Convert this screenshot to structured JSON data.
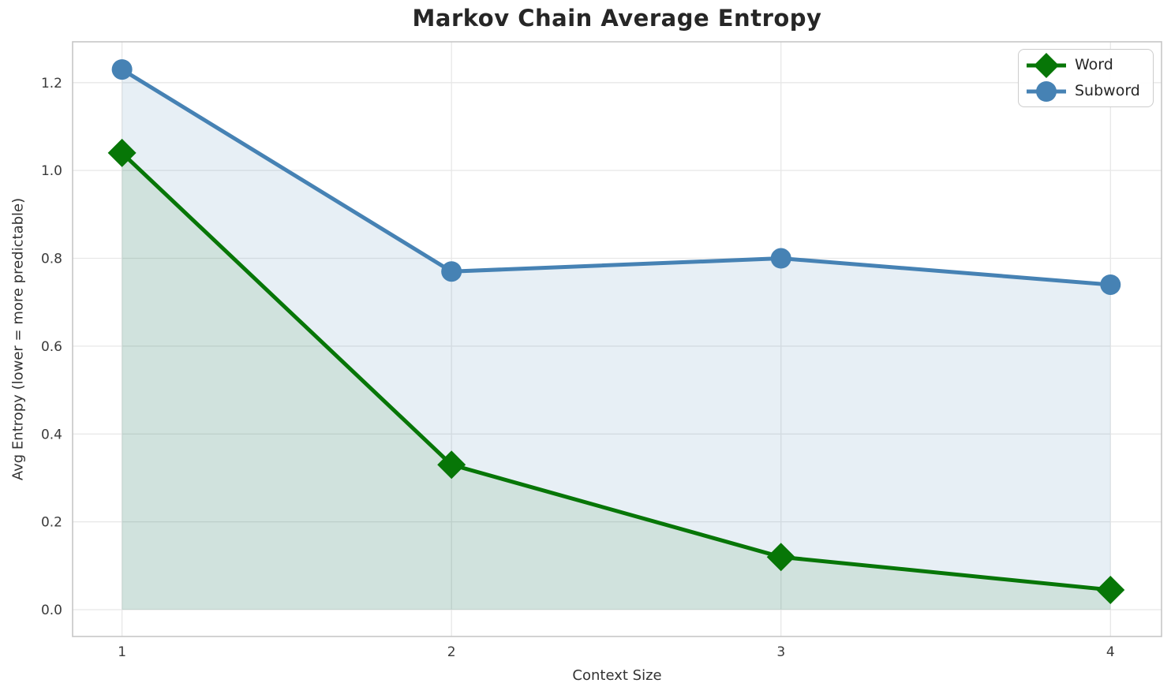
{
  "figure": {
    "title": "Markov Chain Average Entropy",
    "xlabel": "Context Size",
    "ylabel": "Avg Entropy (lower = more predictable)"
  },
  "legend": {
    "position": "upper right",
    "items": [
      {
        "label": "Word",
        "marker": "diamond-icon"
      },
      {
        "label": "Subword",
        "marker": "circle-icon"
      }
    ]
  },
  "chart_data": {
    "type": "line",
    "title": "Markov Chain Average Entropy",
    "xlabel": "Context Size",
    "ylabel": "Avg Entropy (lower = more predictable)",
    "x": [
      1,
      2,
      3,
      4
    ],
    "xtick_labels": [
      "1",
      "2",
      "3",
      "4"
    ],
    "ytick_values": [
      0.0,
      0.2,
      0.4,
      0.6,
      0.8,
      1.0,
      1.2
    ],
    "ytick_labels": [
      "0.0",
      "0.2",
      "0.4",
      "0.6",
      "0.8",
      "1.0",
      "1.2"
    ],
    "xlim": [
      0.85,
      4.155
    ],
    "ylim": [
      -0.061,
      1.293
    ],
    "grid": true,
    "legend_position": "upper right",
    "series": [
      {
        "name": "Word",
        "marker": "diamond",
        "color": "#077607",
        "fill_color": "rgba(7,118,7,0.10)",
        "fill_to_zero": true,
        "values": [
          1.04,
          0.33,
          0.12,
          0.045
        ]
      },
      {
        "name": "Subword",
        "marker": "circle",
        "color": "#4682b4",
        "fill_color": "rgba(70,130,180,0.13)",
        "fill_to_zero": true,
        "values": [
          1.23,
          0.77,
          0.8,
          0.74
        ]
      }
    ],
    "style": {
      "grid_color": "#e7e7e7",
      "spine_color": "#c6c6c6",
      "tick_text_color": "#3a3a3a",
      "title_color": "#262626",
      "label_text_color": "#333333",
      "background": "#ffffff"
    }
  }
}
